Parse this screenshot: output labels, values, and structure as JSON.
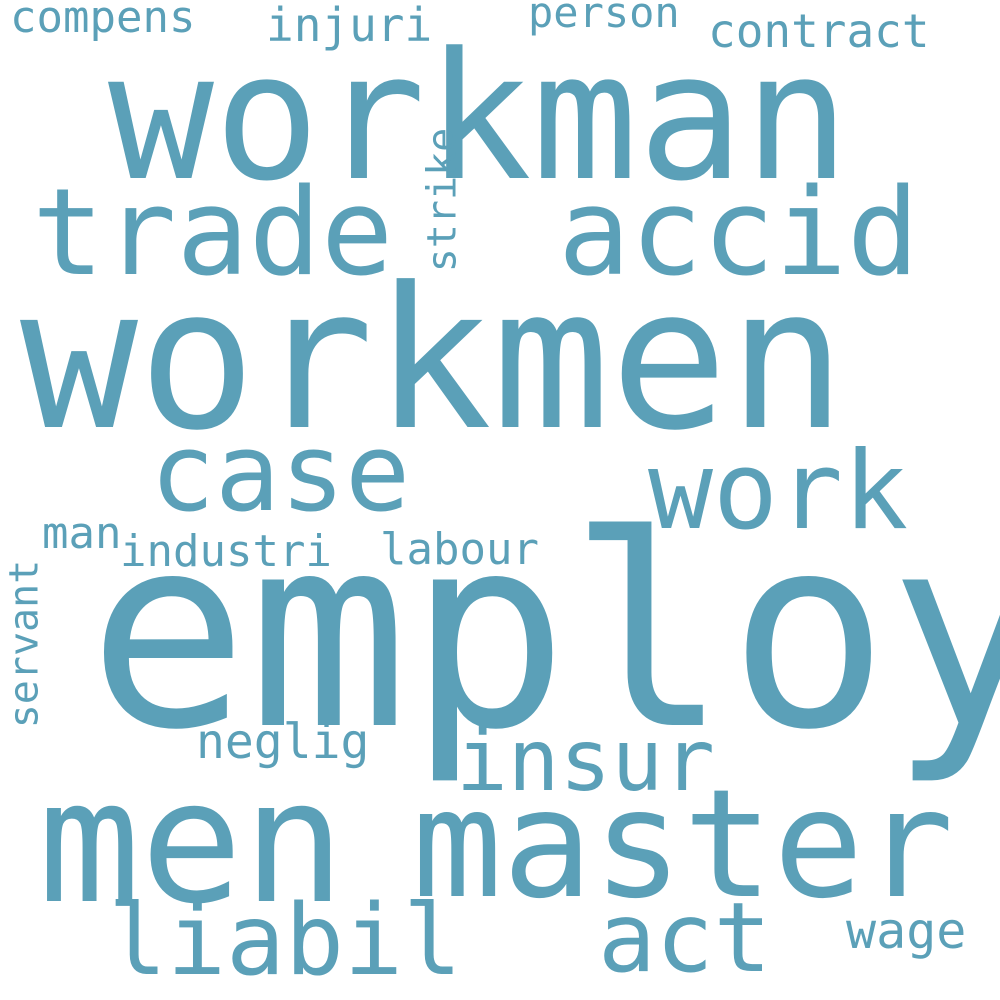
{
  "cloud": {
    "background": "#ffffff",
    "word_color": "#5ba0b8",
    "words": [
      {
        "text": "compens"
      },
      {
        "text": "injuri"
      },
      {
        "text": "person"
      },
      {
        "text": "contract"
      },
      {
        "text": "workman"
      },
      {
        "text": "trade"
      },
      {
        "text": "accid"
      },
      {
        "text": "strike"
      },
      {
        "text": "workmen"
      },
      {
        "text": "case"
      },
      {
        "text": "work"
      },
      {
        "text": "man"
      },
      {
        "text": "industri"
      },
      {
        "text": "labour"
      },
      {
        "text": "servant"
      },
      {
        "text": "employ"
      },
      {
        "text": "neglig"
      },
      {
        "text": "insur"
      },
      {
        "text": "men"
      },
      {
        "text": "master"
      },
      {
        "text": "liabil"
      },
      {
        "text": "act"
      },
      {
        "text": "wage"
      }
    ]
  }
}
